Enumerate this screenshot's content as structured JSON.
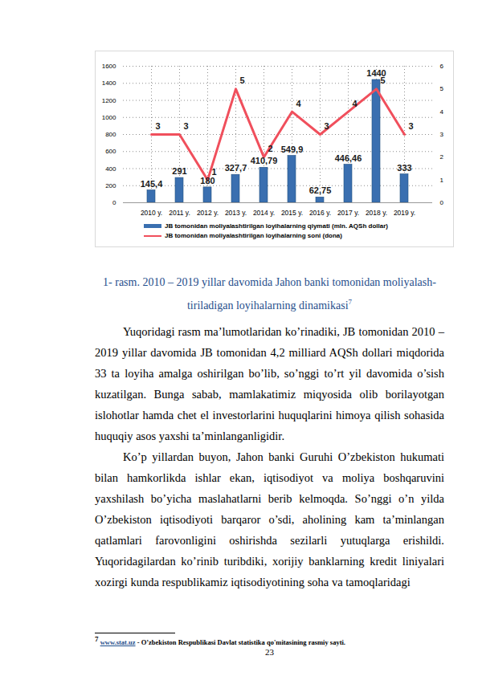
{
  "chart_data": {
    "type": "bar",
    "categories": [
      "2010 y.",
      "2011 y.",
      "2012 y.",
      "2013 y.",
      "2014 y.",
      "2015 y.",
      "2016 y.",
      "2017 y.",
      "2018 y.",
      "2019 y."
    ],
    "series": [
      {
        "name": "JB tomonidan moliyalashtirilgan loyihalarning qiymati (mln. AQSh dollar)",
        "type": "bar",
        "color": "#3a6fb0",
        "values": [
          145.4,
          291,
          180,
          327.7,
          410.79,
          549.9,
          62.75,
          446.46,
          1440,
          333
        ],
        "value_labels": [
          "145,4",
          "291",
          "180",
          "327,7",
          "410,79",
          "549,9",
          "62,75",
          "446,46",
          "1440",
          "333"
        ]
      },
      {
        "name": "JB tomonidan moliyalashtirilgan loyihalarning soni (dona)",
        "type": "line",
        "axis": "y2",
        "color": "#f04f5c",
        "values": [
          3,
          3,
          1,
          5,
          2,
          4,
          3,
          4,
          5,
          3
        ]
      }
    ],
    "ylim": [
      0,
      1600
    ],
    "yticks": [
      0,
      200,
      400,
      600,
      800,
      1000,
      1200,
      1400,
      1600
    ],
    "y2lim": [
      0,
      6
    ],
    "y2ticks": [
      0,
      1,
      2,
      3,
      4,
      5,
      6
    ],
    "grid": true,
    "legend": "bottom",
    "data_labels": true
  },
  "caption": {
    "lines": [
      "1- rasm. 2010 – 2019 yillar davomida Jahon banki tomonidan moliyalash-",
      "tiriladigan loyihalarning dinamikasi"
    ],
    "footnote_ref": "7"
  },
  "paragraphs": [
    "Yuqoridagi rasm ma’lumotlaridan ko’rinadiki, JB tomonidan 2010 – 2019 yillar davomida JB tomonidan 4,2 milliard AQSh dollari miqdorida 33 ta loyiha amalga oshirilgan bo’lib, so’nggi to’rt yil davomida o’sish kuzatilgan. Bunga sabab, mamlakatimiz miqyosida olib borilayotgan islohotlar hamda chet el investorlarini huquqlarini himoya qilish sohasida huquqiy asos yaxshi ta’minlanganligidir.",
    "Ko’p yillardan buyon, Jahon banki Guruhi O’zbekiston hukumati bilan hamkorlikda ishlar ekan, iqtisodiyot va moliya boshqaruvini yaxshilash bo’yicha maslahatlarni berib kelmoqda. So’nggi o’n yilda O’zbekiston iqtisodiyoti barqaror o’sdi, aholining kam ta’minlangan qatlamlari farovonligini oshirishda sezilarli yutuqlarga erishildi. Yuqoridagilardan ko’rinib turibdiki, xorijiy banklarning kredit liniyalari xozirgi kunda respublikamiz iqtisodiyotining soha va tamoqlaridagi"
  ],
  "footnote": {
    "number": "7",
    "link": "www.stat.uz",
    "text": " - O’zbekiston Respublikasi Davlat statistika qo'mitasining rasmiy sayti."
  },
  "page_number": 23
}
